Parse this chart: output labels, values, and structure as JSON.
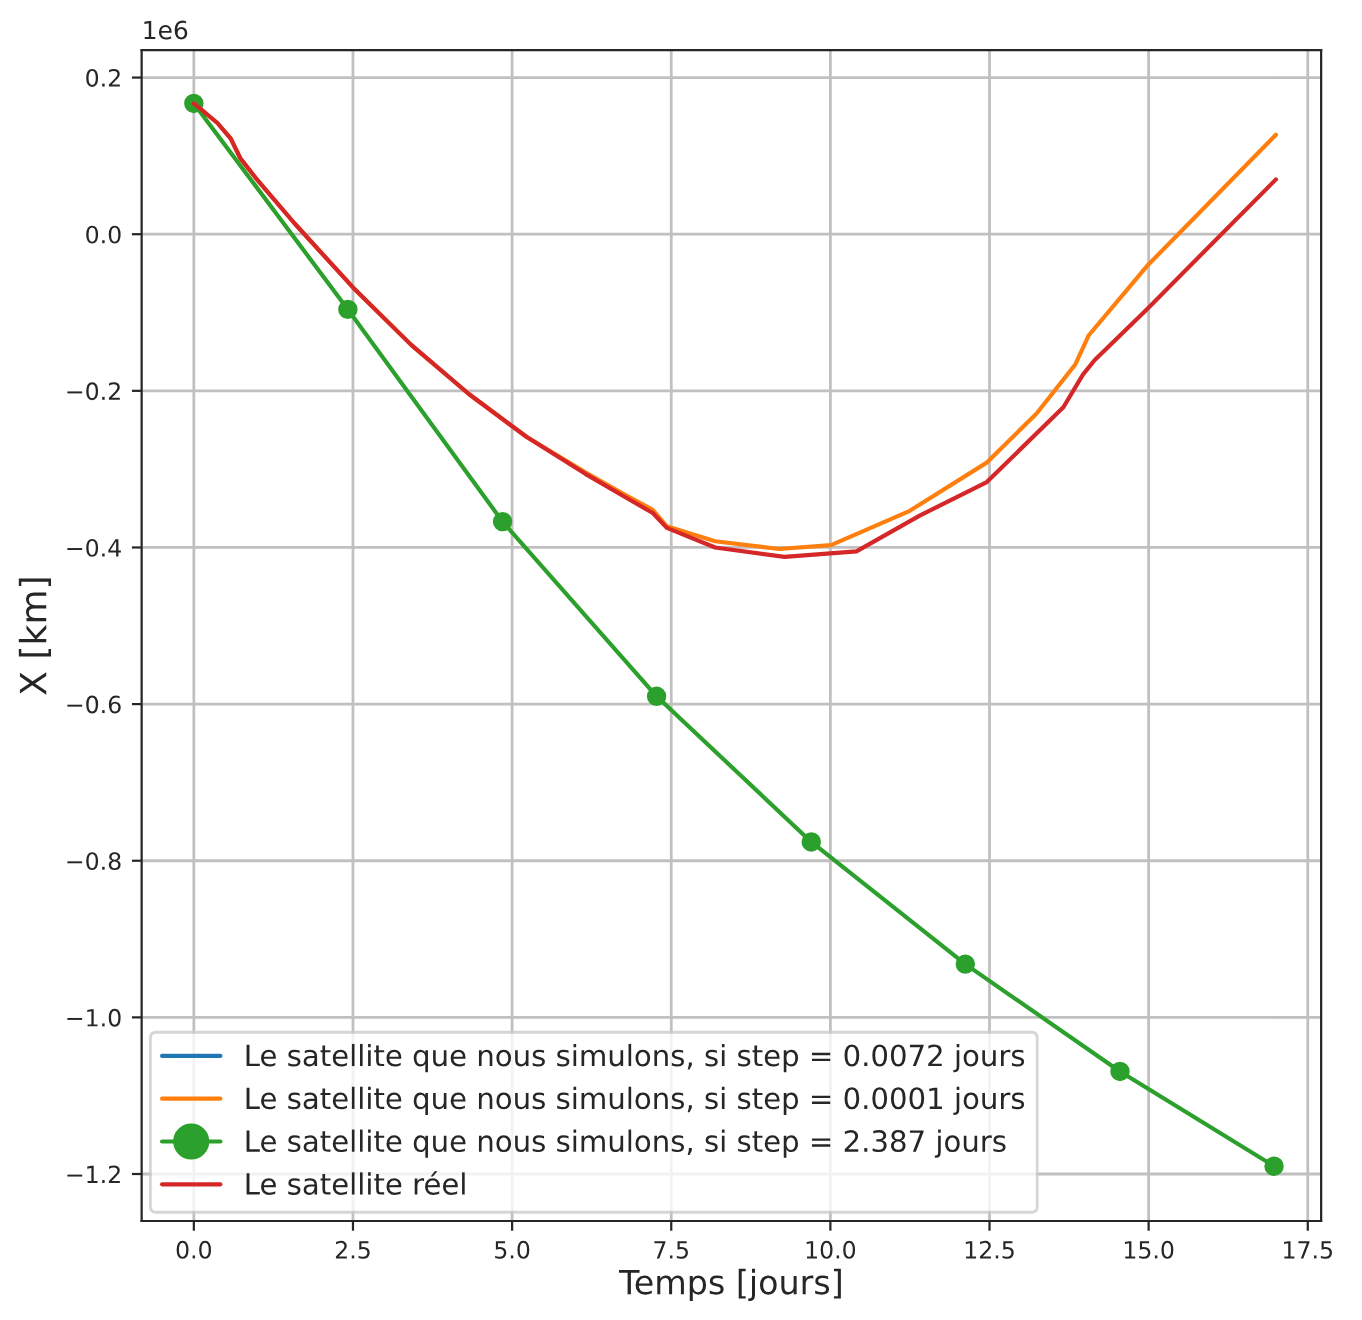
{
  "chart_data": {
    "type": "line",
    "xlabel": "Temps [jours]",
    "ylabel": "X [km]",
    "annotations": [
      "1e6"
    ],
    "xlim": [
      -0.82,
      17.71
    ],
    "xticks": [
      {
        "value": 0,
        "label": "0.0"
      },
      {
        "value": 2.5,
        "label": "2.5"
      },
      {
        "value": 5,
        "label": "5.0"
      },
      {
        "value": 7.5,
        "label": "7.5"
      },
      {
        "value": 10,
        "label": "10.0"
      },
      {
        "value": 12.5,
        "label": "12.5"
      },
      {
        "value": 15,
        "label": "15.0"
      },
      {
        "value": 17.5,
        "label": "17.5"
      }
    ],
    "ylim": [
      -1.26,
      0.235
    ],
    "yticks": [
      {
        "value": -1.2,
        "label": "−1.2"
      },
      {
        "value": -1.0,
        "label": "−1.0"
      },
      {
        "value": -0.8,
        "label": "−0.8"
      },
      {
        "value": -0.6,
        "label": "−0.6"
      },
      {
        "value": -0.4,
        "label": "−0.4"
      },
      {
        "value": -0.2,
        "label": "−0.2"
      },
      {
        "value": 0,
        "label": "0.0"
      },
      {
        "value": 0.2,
        "label": "0.2"
      }
    ],
    "grid": true,
    "legend": "bottom left",
    "series": [
      {
        "name": "Le satellite que nous simulons, si step = 0.0072 jours",
        "color": "#1f77b4",
        "marker": "none"
      },
      {
        "name": "Le satellite que nous simulons, si step = 0.0001 jours",
        "color": "#ff7f0e",
        "marker": "none",
        "x": [
          0,
          0.37,
          0.58,
          0.73,
          0.97,
          1.58,
          2.5,
          3.41,
          4.32,
          5.23,
          6.15,
          6.76,
          7.21,
          7.43,
          8.19,
          9.19,
          10.01,
          11.23,
          12.45,
          13.24,
          13.85,
          14.06,
          14.97,
          17.0
        ],
        "values": [
          0.167,
          0.142,
          0.122,
          0.097,
          0.072,
          0.014,
          -0.068,
          -0.141,
          -0.204,
          -0.259,
          -0.304,
          -0.332,
          -0.352,
          -0.373,
          -0.392,
          -0.402,
          -0.397,
          -0.354,
          -0.292,
          -0.229,
          -0.166,
          -0.129,
          -0.041,
          0.127
        ]
      },
      {
        "name": "Le satellite que nous simulons, si step = 2.387 jours",
        "color": "#2ca02c",
        "marker": "circle",
        "x": [
          0,
          2.42,
          4.85,
          7.27,
          9.7,
          12.12,
          14.55,
          16.97
        ],
        "values": [
          0.167,
          -0.096,
          -0.367,
          -0.59,
          -0.776,
          -0.932,
          -1.069,
          -1.19
        ]
      },
      {
        "name": "Le satellite réel",
        "color": "#d62728",
        "marker": "none",
        "x": [
          0,
          0.37,
          0.58,
          0.73,
          0.97,
          1.58,
          2.5,
          3.41,
          4.32,
          5.23,
          6.15,
          6.76,
          7.21,
          7.43,
          8.19,
          9.28,
          10.41,
          11.41,
          12.45,
          13.66,
          13.97,
          14.15,
          14.97,
          17.0
        ],
        "values": [
          0.167,
          0.142,
          0.122,
          0.097,
          0.072,
          0.014,
          -0.068,
          -0.141,
          -0.204,
          -0.259,
          -0.306,
          -0.335,
          -0.356,
          -0.375,
          -0.4,
          -0.412,
          -0.405,
          -0.359,
          -0.317,
          -0.221,
          -0.179,
          -0.161,
          -0.096,
          0.07
        ]
      }
    ]
  }
}
